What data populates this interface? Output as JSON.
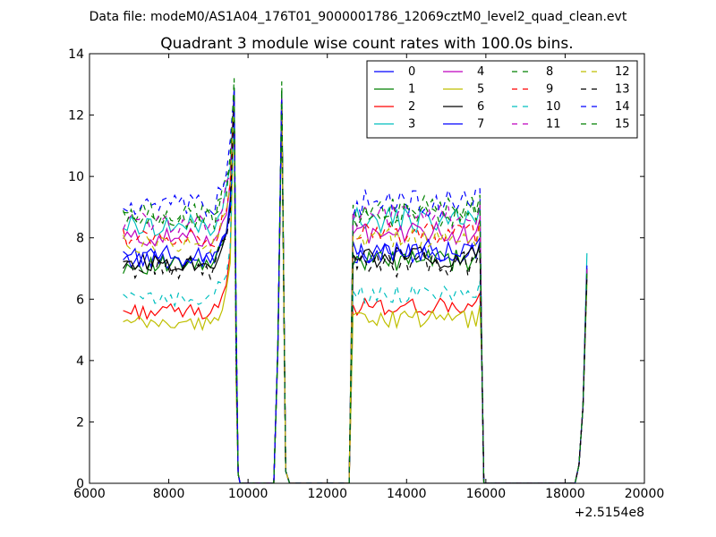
{
  "header": {
    "data_file": "Data file: modeM0/AS1A04_176T01_9000001786_12069cztM0_level2_quad_clean.evt"
  },
  "chart_data": {
    "type": "line",
    "title": "Quadrant 3 module wise count rates with 100.0s bins.",
    "xlabel": "",
    "ylabel": "",
    "x_offset_label": "+2.5154e8",
    "xlim": [
      6000,
      20000
    ],
    "ylim": [
      0,
      14
    ],
    "x_ticks": [
      6000,
      8000,
      10000,
      12000,
      14000,
      16000,
      18000,
      20000
    ],
    "y_ticks": [
      0,
      2,
      4,
      6,
      8,
      10,
      12,
      14
    ],
    "grid": false,
    "legend_position": "top-right",
    "legend_columns": 4,
    "x_blocks": [
      {
        "start": 6850,
        "end": 9750
      },
      {
        "start": 10650,
        "end": 11050
      },
      {
        "start": 12550,
        "end": 15950
      },
      {
        "start": 18250,
        "end": 18550
      }
    ],
    "series": [
      {
        "name": "0",
        "color": "#0000ff",
        "dash": "solid",
        "level": 7.3,
        "amp": 0.3,
        "spike": 12.9,
        "end": 7.0
      },
      {
        "name": "1",
        "color": "#008000",
        "dash": "solid",
        "level": 7.1,
        "amp": 0.3,
        "spike": 12.7,
        "end": 7.0
      },
      {
        "name": "2",
        "color": "#ff0000",
        "dash": "solid",
        "level": 5.6,
        "amp": 0.25,
        "spike": 12.5,
        "end": 6.8
      },
      {
        "name": "3",
        "color": "#00bfbf",
        "dash": "solid",
        "level": 8.4,
        "amp": 0.35,
        "spike": 12.7,
        "end": 7.5
      },
      {
        "name": "4",
        "color": "#bf00bf",
        "dash": "solid",
        "level": 8.0,
        "amp": 0.3,
        "spike": 12.6,
        "end": 7.0
      },
      {
        "name": "5",
        "color": "#bfbf00",
        "dash": "solid",
        "level": 5.2,
        "amp": 0.25,
        "spike": 12.3,
        "end": 6.5
      },
      {
        "name": "6",
        "color": "#000000",
        "dash": "solid",
        "level": 7.2,
        "amp": 0.3,
        "spike": 12.6,
        "end": 6.9
      },
      {
        "name": "7",
        "color": "#0000ff",
        "dash": "solid",
        "level": 7.4,
        "amp": 0.35,
        "spike": 12.8,
        "end": 7.0
      },
      {
        "name": "8",
        "color": "#008000",
        "dash": "dashed",
        "level": 8.8,
        "amp": 0.35,
        "spike": 13.2,
        "end": 7.0
      },
      {
        "name": "9",
        "color": "#ff0000",
        "dash": "dashed",
        "level": 8.0,
        "amp": 0.3,
        "spike": 12.6,
        "end": 6.9
      },
      {
        "name": "10",
        "color": "#00bfbf",
        "dash": "dashed",
        "level": 6.0,
        "amp": 0.25,
        "spike": 12.4,
        "end": 6.8
      },
      {
        "name": "11",
        "color": "#bf00bf",
        "dash": "dashed",
        "level": 8.5,
        "amp": 0.35,
        "spike": 12.7,
        "end": 7.0
      },
      {
        "name": "12",
        "color": "#bfbf00",
        "dash": "dashed",
        "level": 7.8,
        "amp": 0.3,
        "spike": 12.5,
        "end": 6.9
      },
      {
        "name": "13",
        "color": "#000000",
        "dash": "dashed",
        "level": 7.0,
        "amp": 0.35,
        "spike": 12.6,
        "end": 6.8
      },
      {
        "name": "14",
        "color": "#0000ff",
        "dash": "dashed",
        "level": 9.0,
        "amp": 0.4,
        "spike": 12.8,
        "end": 7.1
      },
      {
        "name": "15",
        "color": "#008000",
        "dash": "dashed",
        "level": 8.6,
        "amp": 0.35,
        "spike": 12.9,
        "end": 7.0
      }
    ]
  }
}
